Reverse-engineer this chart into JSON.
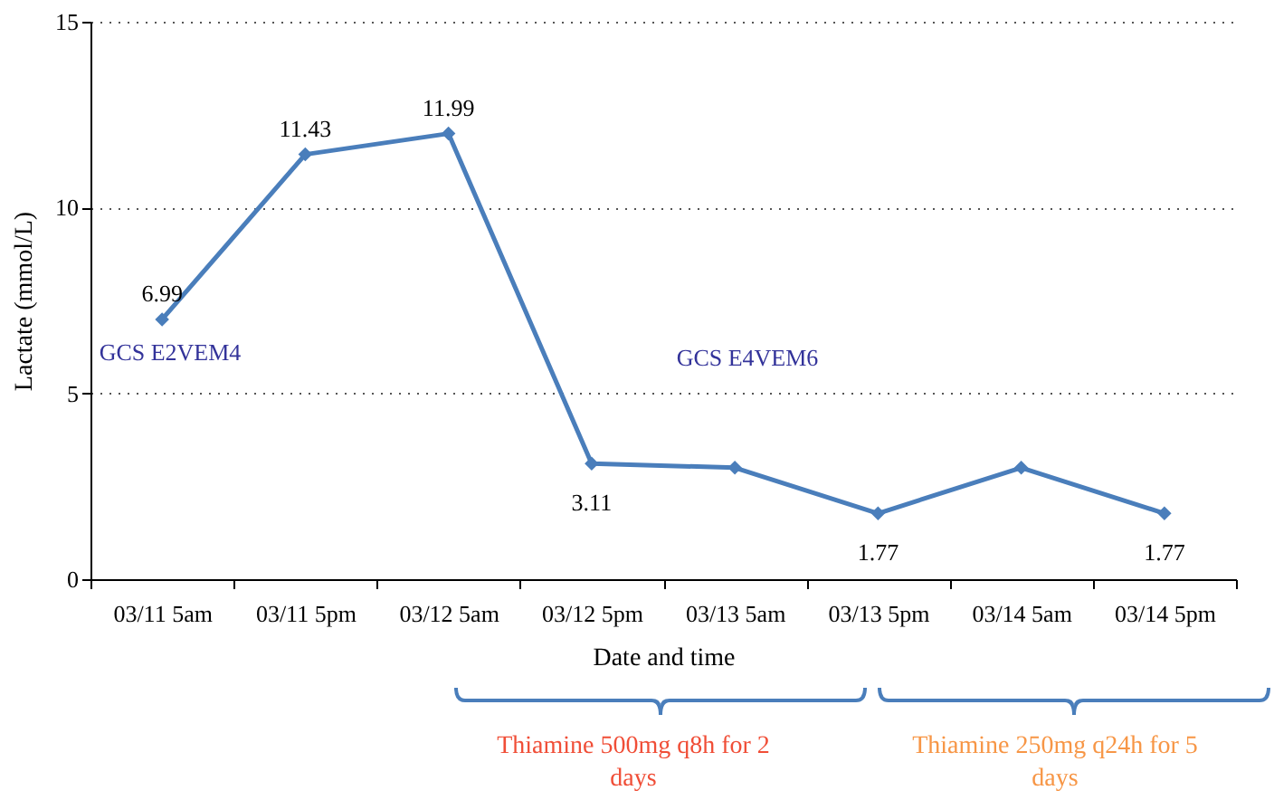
{
  "chart_data": {
    "type": "line",
    "xlabel": "Date and time",
    "ylabel": "Lactate (mmol/L)",
    "categories": [
      "03/11 5am",
      "03/11 5pm",
      "03/12 5am",
      "03/12 5pm",
      "03/13 5am",
      "03/13 5pm",
      "03/14 5am",
      "03/14 5pm"
    ],
    "series": [
      {
        "color": "#4a7ebb",
        "values": [
          6.99,
          11.43,
          11.99,
          3.11,
          3.0,
          1.77,
          3.0,
          1.77
        ],
        "value_labels": [
          "6.99",
          "11.43",
          "11.99",
          "3.11",
          null,
          "1.77",
          null,
          "1.77"
        ]
      }
    ],
    "ylim": [
      0,
      15
    ],
    "yticks": [
      0,
      5,
      10,
      15
    ],
    "grid": "y",
    "marker": "diamond",
    "line_style": "solid",
    "annotations": [
      "GCS E2VEM4",
      "GCS E4VEM6",
      "Thiamine 500mg q8h for 2 days",
      "Thiamine 250mg q24h for 5 days"
    ]
  }
}
